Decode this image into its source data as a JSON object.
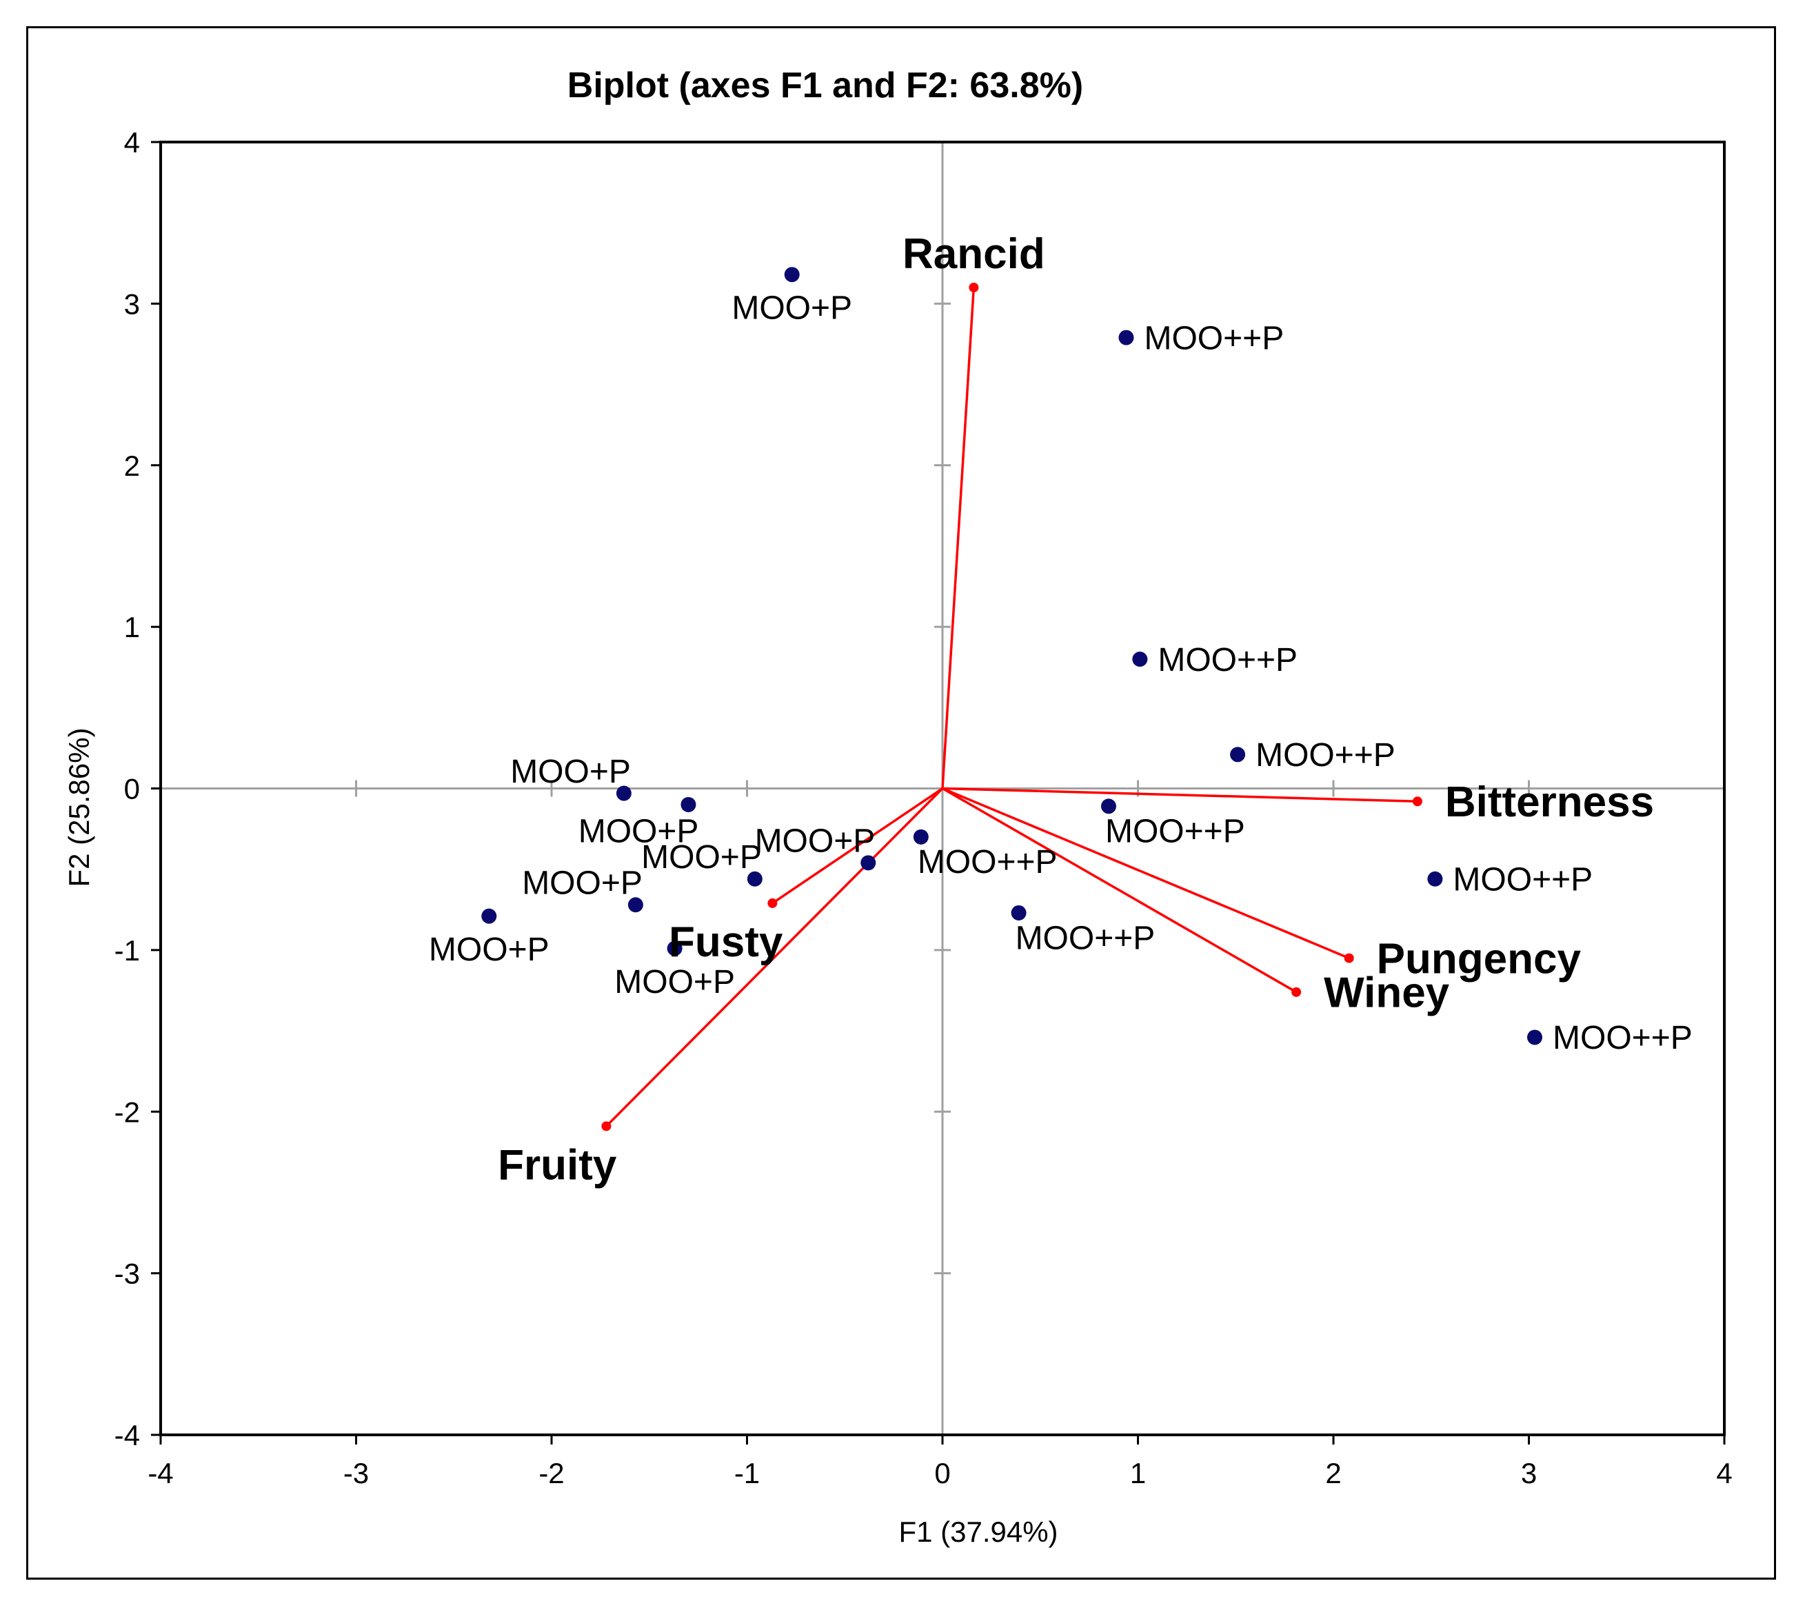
{
  "chart_data": {
    "type": "scatter",
    "title": "Biplot (axes F1 and F2: 63.8%)",
    "xlabel": "F1 (37.94%)",
    "ylabel": "F2 (25.86%)",
    "xlim": [
      -4,
      4
    ],
    "ylim": [
      -4,
      4
    ],
    "xticks": [
      "-4",
      "-3",
      "-2",
      "-1",
      "0",
      "1",
      "2",
      "3",
      "4"
    ],
    "yticks": [
      "-4",
      "-3",
      "-2",
      "-1",
      "0",
      "1",
      "2",
      "3",
      "4"
    ],
    "colors": {
      "observations": "#0a0a6e",
      "vectors": "#ff0000",
      "axes": "#a0a0a0",
      "frame": "#000000"
    },
    "observations": [
      {
        "label": "MOO+P",
        "x": -0.77,
        "y": 3.18,
        "label_pos": "below"
      },
      {
        "label": "MOO++P",
        "x": 0.94,
        "y": 2.79,
        "label_pos": "right"
      },
      {
        "label": "MOO++P",
        "x": 1.01,
        "y": 0.8,
        "label_pos": "right"
      },
      {
        "label": "MOO++P",
        "x": 1.51,
        "y": 0.21,
        "label_pos": "right"
      },
      {
        "label": "MOO++P",
        "x": 0.85,
        "y": -0.11,
        "label_pos": "below-right"
      },
      {
        "label": "MOO++P",
        "x": -0.11,
        "y": -0.3,
        "label_pos": "below-right"
      },
      {
        "label": "MOO++P",
        "x": 0.39,
        "y": -0.77,
        "label_pos": "below-right"
      },
      {
        "label": "MOO++P",
        "x": 2.52,
        "y": -0.56,
        "label_pos": "right"
      },
      {
        "label": "MOO++P",
        "x": 3.03,
        "y": -1.54,
        "label_pos": "right"
      },
      {
        "label": "MOO+P",
        "x": -1.63,
        "y": -0.03,
        "label_pos": "above-left"
      },
      {
        "label": "MOO+P",
        "x": -1.3,
        "y": -0.1,
        "label_pos": "below-left"
      },
      {
        "label": "MOO+P",
        "x": -0.38,
        "y": -0.46,
        "label_pos": "above-left"
      },
      {
        "label": "MOO+P",
        "x": -0.96,
        "y": -0.56,
        "label_pos": "above-left"
      },
      {
        "label": "MOO+P",
        "x": -1.57,
        "y": -0.72,
        "label_pos": "above-left"
      },
      {
        "label": "MOO+P",
        "x": -2.32,
        "y": -0.79,
        "label_pos": "below"
      },
      {
        "label": "MOO+P",
        "x": -1.37,
        "y": -0.99,
        "label_pos": "below"
      }
    ],
    "variables": [
      {
        "label": "Rancid",
        "x": 0.16,
        "y": 3.1,
        "label_pos": "above"
      },
      {
        "label": "Bitterness",
        "x": 2.43,
        "y": -0.08,
        "label_pos": "right"
      },
      {
        "label": "Pungency",
        "x": 2.08,
        "y": -1.05,
        "label_pos": "right"
      },
      {
        "label": "Winey",
        "x": 1.81,
        "y": -1.26,
        "label_pos": "right"
      },
      {
        "label": "Fusty",
        "x": -0.87,
        "y": -0.71,
        "label_pos": "below-left"
      },
      {
        "label": "Fruity",
        "x": -1.72,
        "y": -2.09,
        "label_pos": "below-left"
      }
    ]
  }
}
